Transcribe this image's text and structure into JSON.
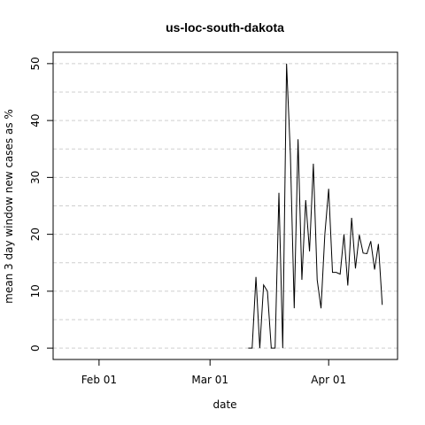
{
  "chart_data": {
    "type": "line",
    "title": "us-loc-south-dakota",
    "xlabel": "date",
    "ylabel": "mean  3  day window new cases as %",
    "x_ticks": [
      "Feb 01",
      "Mar 01",
      "Apr 01"
    ],
    "x_tick_dates": [
      "2020-02-01",
      "2020-03-01",
      "2020-04-01"
    ],
    "y_ticks": [
      0,
      10,
      20,
      30,
      40,
      50
    ],
    "xlim": [
      "2020-01-20",
      "2020-04-19"
    ],
    "ylim": [
      -2,
      52
    ],
    "grid": true,
    "series": [
      {
        "x": [
          "2020-03-11",
          "2020-03-12",
          "2020-03-13",
          "2020-03-14",
          "2020-03-15",
          "2020-03-16",
          "2020-03-17",
          "2020-03-18",
          "2020-03-19",
          "2020-03-20",
          "2020-03-21",
          "2020-03-22",
          "2020-03-23",
          "2020-03-24",
          "2020-03-25",
          "2020-03-26",
          "2020-03-27",
          "2020-03-28",
          "2020-03-29",
          "2020-03-30",
          "2020-03-31",
          "2020-04-01",
          "2020-04-02",
          "2020-04-03",
          "2020-04-04",
          "2020-04-05",
          "2020-04-06",
          "2020-04-07",
          "2020-04-08",
          "2020-04-09",
          "2020-04-10",
          "2020-04-11",
          "2020-04-12",
          "2020-04-13",
          "2020-04-14",
          "2020-04-15"
        ],
        "values": [
          0,
          0,
          12.5,
          0,
          11.1,
          10.0,
          0,
          0,
          27.3,
          0,
          50.0,
          34.0,
          7.0,
          36.7,
          12.0,
          26.0,
          17.0,
          32.4,
          12.0,
          7.0,
          20.0,
          28.0,
          13.3,
          13.3,
          13.0,
          20.0,
          11.0,
          22.9,
          14.0,
          19.9,
          16.7,
          16.6,
          18.8,
          13.8,
          18.3,
          7.6
        ]
      }
    ]
  }
}
